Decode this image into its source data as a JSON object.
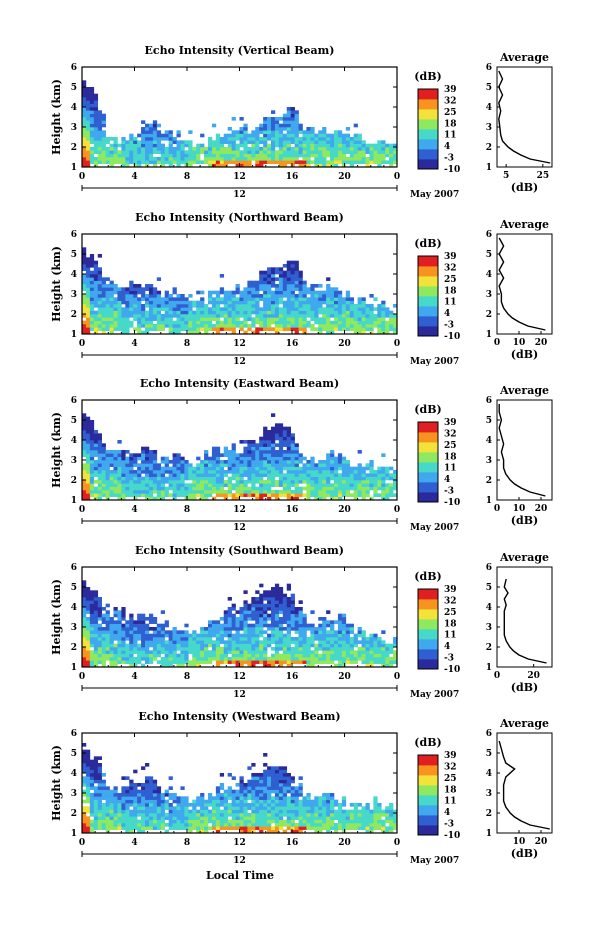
{
  "figure": {
    "xlabel": "Local Time",
    "date_label": "May 2007",
    "midnight_label": "12"
  },
  "colorbar": {
    "unit": "(dB)",
    "ticks": [
      "39",
      "32",
      "25",
      "18",
      "11",
      "4",
      "-3",
      "-10"
    ],
    "colors": [
      "#2a2a9c",
      "#2f5fd0",
      "#3fa8ef",
      "#46d8c8",
      "#8ee860",
      "#f2e23a",
      "#f7931e",
      "#e02020"
    ]
  },
  "panels": [
    {
      "title": "Echo Intensity (Vertical Beam)",
      "avg_title": "Average",
      "avg_xlabel": "(dB)",
      "avg_xticks": [
        "5",
        "25"
      ]
    },
    {
      "title": "Echo Intensity (Northward Beam)",
      "avg_title": "Average",
      "avg_xlabel": "(dB)",
      "avg_xticks": [
        "0",
        "10",
        "20"
      ]
    },
    {
      "title": "Echo Intensity (Eastward Beam)",
      "avg_title": "Average",
      "avg_xlabel": "(dB)",
      "avg_xticks": [
        "0",
        "10",
        "20"
      ]
    },
    {
      "title": "Echo Intensity (Southward Beam)",
      "avg_title": "Average",
      "avg_xlabel": "(dB)",
      "avg_xticks": [
        "0",
        "20"
      ]
    },
    {
      "title": "Echo Intensity (Westward Beam)",
      "avg_title": "Average",
      "avg_xlabel": "(dB)",
      "avg_xticks": [
        "10",
        "20"
      ]
    }
  ],
  "chart_data": [
    {
      "type": "heatmap",
      "title": "Echo Intensity (Vertical Beam)",
      "xlabel": "",
      "ylabel": "Height (km)",
      "x_ticks": [
        "0",
        "4",
        "8",
        "12",
        "16",
        "20",
        "0"
      ],
      "xlim": [
        0,
        24
      ],
      "y_ticks": [
        "1",
        "2",
        "3",
        "4",
        "5",
        "6"
      ],
      "ylim": [
        1,
        6
      ],
      "colorbar_range": [
        -10,
        39
      ],
      "colorbar_ticks": [
        39,
        32,
        25,
        18,
        11,
        4,
        -3,
        -10
      ],
      "echo_top_km": [
        5.4,
        4.8,
        2.6,
        2.4,
        2.6,
        3.2,
        2.8,
        2.5,
        2.3,
        2.0,
        2.3,
        2.8,
        2.9,
        3.0,
        3.6,
        3.2,
        4.0,
        3.0,
        2.8,
        2.6,
        2.9,
        2.5,
        2.4,
        2.3,
        2.2
      ],
      "average_profile": {
        "title": "Average",
        "xlabel": "(dB)",
        "xlim": [
          0,
          30
        ],
        "ylim": [
          1,
          6
        ],
        "height_km": [
          1.2,
          1.4,
          1.6,
          1.8,
          2.0,
          2.3,
          2.6,
          3.0,
          3.4,
          3.8,
          4.2,
          4.6,
          5.0,
          5.4,
          5.8
        ],
        "db": [
          29,
          18,
          13,
          9,
          6,
          3,
          2,
          1.5,
          1,
          2,
          1,
          3,
          1,
          3,
          1
        ]
      }
    },
    {
      "type": "heatmap",
      "title": "Echo Intensity (Northward Beam)",
      "xlabel": "",
      "ylabel": "Height (km)",
      "x_ticks": [
        "0",
        "4",
        "8",
        "12",
        "16",
        "20",
        "0"
      ],
      "xlim": [
        0,
        24
      ],
      "y_ticks": [
        "1",
        "2",
        "3",
        "4",
        "5",
        "6"
      ],
      "ylim": [
        1,
        6
      ],
      "colorbar_range": [
        -10,
        39
      ],
      "colorbar_ticks": [
        39,
        32,
        25,
        18,
        11,
        4,
        -3,
        -10
      ],
      "echo_top_km": [
        5.4,
        4.6,
        3.6,
        3.2,
        3.4,
        3.5,
        3.0,
        3.2,
        2.8,
        2.6,
        3.0,
        3.2,
        3.4,
        3.6,
        4.2,
        4.5,
        4.8,
        3.6,
        3.2,
        3.4,
        3.0,
        2.7,
        2.5,
        2.4,
        2.2
      ],
      "average_profile": {
        "title": "Average",
        "xlabel": "(dB)",
        "xlim": [
          0,
          25
        ],
        "ylim": [
          1,
          6
        ],
        "height_km": [
          1.2,
          1.4,
          1.6,
          1.8,
          2.0,
          2.3,
          2.6,
          3.0,
          3.4,
          3.8,
          4.2,
          4.6,
          5.0,
          5.4,
          5.8
        ],
        "db": [
          22,
          14,
          10,
          7,
          5,
          3,
          2,
          2,
          1,
          3,
          1,
          3,
          1,
          3,
          1
        ]
      }
    },
    {
      "type": "heatmap",
      "title": "Echo Intensity (Eastward Beam)",
      "xlabel": "",
      "ylabel": "Height (km)",
      "x_ticks": [
        "0",
        "4",
        "8",
        "12",
        "16",
        "20",
        "0"
      ],
      "xlim": [
        0,
        24
      ],
      "y_ticks": [
        "1",
        "2",
        "3",
        "4",
        "5",
        "6"
      ],
      "ylim": [
        1,
        6
      ],
      "colorbar_range": [
        -10,
        39
      ],
      "colorbar_ticks": [
        39,
        32,
        25,
        18,
        11,
        4,
        -3,
        -10
      ],
      "echo_top_km": [
        5.4,
        4.8,
        3.6,
        3.4,
        3.4,
        3.8,
        3.0,
        3.2,
        2.9,
        2.8,
        3.4,
        3.6,
        3.5,
        3.8,
        4.6,
        4.9,
        4.4,
        3.2,
        3.0,
        3.2,
        3.0,
        2.6,
        2.8,
        2.5,
        2.2
      ],
      "average_profile": {
        "title": "Average",
        "xlabel": "(dB)",
        "xlim": [
          0,
          25
        ],
        "ylim": [
          1,
          6
        ],
        "height_km": [
          1.2,
          1.4,
          1.6,
          1.8,
          2.0,
          2.3,
          2.6,
          3.0,
          3.4,
          3.8,
          4.2,
          4.6,
          5.0,
          5.4,
          5.8
        ],
        "db": [
          22,
          15,
          11,
          8,
          6,
          4,
          3,
          3,
          2,
          3,
          2,
          1,
          2,
          1,
          1
        ]
      }
    },
    {
      "type": "heatmap",
      "title": "Echo Intensity (Southward Beam)",
      "xlabel": "",
      "ylabel": "Height (km)",
      "x_ticks": [
        "0",
        "4",
        "8",
        "12",
        "16",
        "20",
        "0"
      ],
      "xlim": [
        0,
        24
      ],
      "y_ticks": [
        "1",
        "2",
        "3",
        "4",
        "5",
        "6"
      ],
      "ylim": [
        1,
        6
      ],
      "colorbar_range": [
        -10,
        39
      ],
      "colorbar_ticks": [
        39,
        32,
        25,
        18,
        11,
        4,
        -3,
        -10
      ],
      "echo_top_km": [
        5.4,
        4.6,
        3.8,
        3.6,
        3.4,
        3.8,
        3.2,
        3.0,
        2.9,
        2.8,
        3.4,
        3.9,
        4.0,
        4.3,
        4.9,
        5.2,
        4.6,
        3.4,
        3.0,
        3.5,
        3.4,
        2.9,
        2.6,
        2.4,
        2.2
      ],
      "average_profile": {
        "title": "Average",
        "xlabel": "(dB)",
        "xlim": [
          0,
          30
        ],
        "ylim": [
          1,
          6
        ],
        "height_km": [
          1.2,
          1.4,
          1.6,
          1.8,
          2.0,
          2.3,
          2.6,
          3.0,
          3.4,
          3.8,
          4.1,
          4.4,
          4.7,
          5.0,
          5.4
        ],
        "db": [
          27,
          17,
          12,
          9,
          7,
          5,
          4,
          4,
          4,
          4,
          5,
          4,
          6,
          4,
          5
        ]
      }
    },
    {
      "type": "heatmap",
      "title": "Echo Intensity (Westward Beam)",
      "xlabel": "Local Time",
      "ylabel": "Height (km)",
      "x_ticks": [
        "0",
        "4",
        "8",
        "12",
        "16",
        "20",
        "0"
      ],
      "xlim": [
        0,
        24
      ],
      "y_ticks": [
        "1",
        "2",
        "3",
        "4",
        "5",
        "6"
      ],
      "ylim": [
        1,
        6
      ],
      "colorbar_range": [
        -10,
        39
      ],
      "colorbar_ticks": [
        39,
        32,
        25,
        18,
        11,
        4,
        -3,
        -10
      ],
      "echo_top_km": [
        5.5,
        4.7,
        3.4,
        3.2,
        3.6,
        3.8,
        3.2,
        3.0,
        2.7,
        2.8,
        3.0,
        3.3,
        3.6,
        3.8,
        4.3,
        4.6,
        3.8,
        3.0,
        2.7,
        2.9,
        2.6,
        2.4,
        2.5,
        2.3,
        2.2
      ],
      "average_profile": {
        "title": "Average",
        "xlabel": "(dB)",
        "xlim": [
          0,
          25
        ],
        "ylim": [
          1,
          6
        ],
        "height_km": [
          1.2,
          1.4,
          1.6,
          1.8,
          2.0,
          2.3,
          2.6,
          3.0,
          3.4,
          3.8,
          4.2,
          4.5,
          4.8,
          5.2,
          5.6
        ],
        "db": [
          24,
          15,
          11,
          8,
          6,
          4,
          3,
          3,
          3,
          4,
          8,
          4,
          3,
          2,
          1
        ]
      }
    }
  ]
}
